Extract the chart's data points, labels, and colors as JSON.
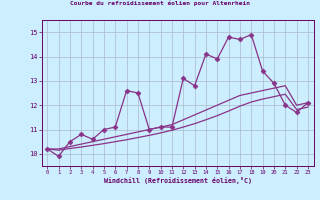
{
  "title": "Courbe du refroidissement éolien pour Altenrhein",
  "xlabel": "Windchill (Refroidissement éolien,°C)",
  "bg_color": "#cceeff",
  "line_color": "#883388",
  "grid_color": "#aabbcc",
  "xlim": [
    -0.5,
    23.5
  ],
  "ylim": [
    9.5,
    15.5
  ],
  "yticks": [
    10,
    11,
    12,
    13,
    14,
    15
  ],
  "xticks": [
    0,
    1,
    2,
    3,
    4,
    5,
    6,
    7,
    8,
    9,
    10,
    11,
    12,
    13,
    14,
    15,
    16,
    17,
    18,
    19,
    20,
    21,
    22,
    23
  ],
  "series": [
    {
      "x": [
        0,
        1,
        2,
        3,
        4,
        5,
        6,
        7,
        8,
        9,
        10,
        11,
        12,
        13,
        14,
        15,
        16,
        17,
        18,
        19,
        20,
        21,
        22,
        23
      ],
      "y": [
        10.2,
        9.9,
        10.5,
        10.8,
        10.6,
        11.0,
        11.1,
        12.6,
        12.5,
        11.0,
        11.1,
        11.1,
        13.1,
        12.8,
        14.1,
        13.9,
        14.8,
        14.7,
        14.9,
        13.4,
        12.9,
        12.0,
        11.7,
        12.1
      ],
      "marker": "D",
      "markersize": 2.5,
      "linewidth": 0.9
    },
    {
      "x": [
        0,
        1,
        2,
        3,
        4,
        5,
        6,
        7,
        8,
        9,
        10,
        11,
        12,
        13,
        14,
        15,
        16,
        17,
        18,
        19,
        20,
        21,
        22,
        23
      ],
      "y": [
        10.2,
        10.2,
        10.3,
        10.4,
        10.5,
        10.6,
        10.7,
        10.8,
        10.9,
        11.0,
        11.1,
        11.2,
        11.4,
        11.6,
        11.8,
        12.0,
        12.2,
        12.4,
        12.5,
        12.6,
        12.7,
        12.8,
        12.0,
        12.1
      ],
      "marker": null,
      "linewidth": 0.9
    },
    {
      "x": [
        0,
        1,
        2,
        3,
        4,
        5,
        6,
        7,
        8,
        9,
        10,
        11,
        12,
        13,
        14,
        15,
        16,
        17,
        18,
        19,
        20,
        21,
        22,
        23
      ],
      "y": [
        10.2,
        10.15,
        10.22,
        10.28,
        10.35,
        10.42,
        10.5,
        10.58,
        10.67,
        10.76,
        10.86,
        10.97,
        11.1,
        11.24,
        11.4,
        11.57,
        11.76,
        11.96,
        12.13,
        12.25,
        12.35,
        12.45,
        11.82,
        11.92
      ],
      "marker": null,
      "linewidth": 0.9
    }
  ]
}
